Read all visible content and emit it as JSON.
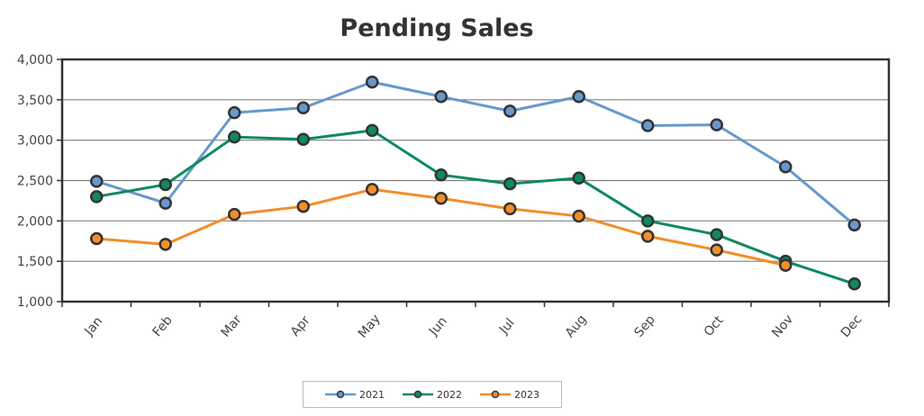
{
  "chart_data": {
    "type": "line",
    "title": "Pending Sales",
    "xlabel": "",
    "ylabel": "",
    "categories": [
      "Jan",
      "Feb",
      "Mar",
      "Apr",
      "May",
      "Jun",
      "Jul",
      "Aug",
      "Sep",
      "Oct",
      "Nov",
      "Dec"
    ],
    "ylim": [
      1000,
      4000
    ],
    "yticks": [
      1000,
      1500,
      2000,
      2500,
      3000,
      3500,
      4000
    ],
    "ytick_labels": [
      "1,000",
      "1,500",
      "2,000",
      "2,500",
      "3,000",
      "3,500",
      "4,000"
    ],
    "grid": true,
    "legend_position": "bottom",
    "series": [
      {
        "name": "2021",
        "color": "#6699cc",
        "values": [
          2490,
          2220,
          3340,
          3400,
          3720,
          3540,
          3360,
          3540,
          3180,
          3190,
          2670,
          1950
        ]
      },
      {
        "name": "2022",
        "color": "#0f8a5f",
        "values": [
          2300,
          2450,
          3040,
          3010,
          3120,
          2570,
          2460,
          2530,
          2000,
          1830,
          1500,
          1220
        ]
      },
      {
        "name": "2023",
        "color": "#f28e2b",
        "values": [
          1780,
          1710,
          2080,
          2180,
          2390,
          2280,
          2150,
          2060,
          1810,
          1640,
          1450,
          null
        ]
      }
    ]
  }
}
